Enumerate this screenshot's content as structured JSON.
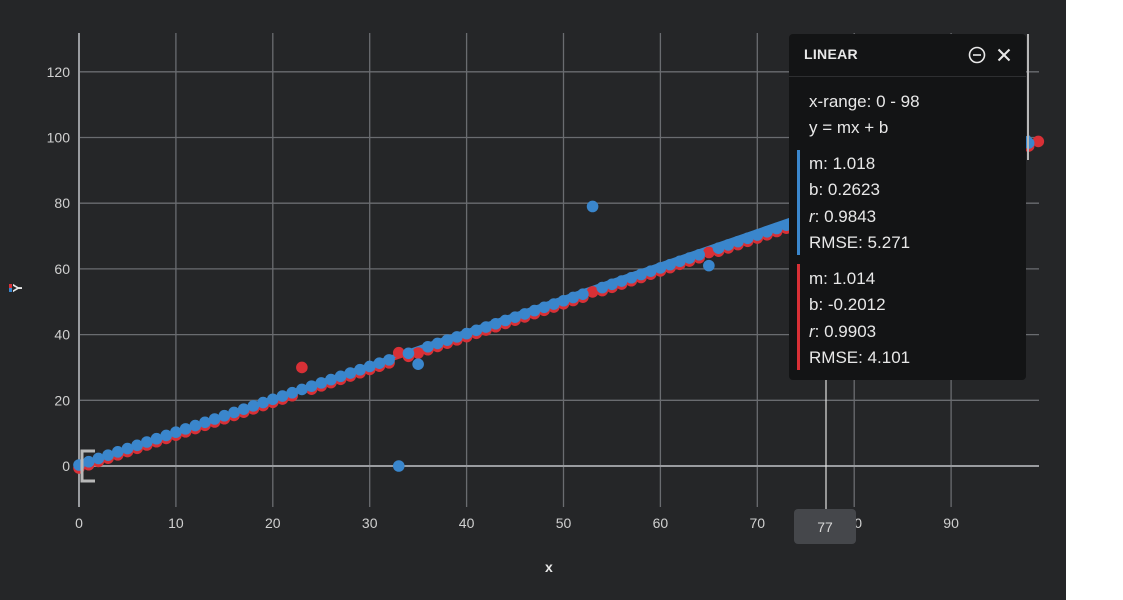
{
  "chart_data": {
    "type": "scatter",
    "xlabel": "x",
    "ylabel": "Y",
    "xlim": [
      0,
      100
    ],
    "ylim": [
      -13,
      132
    ],
    "x_ticks": [
      0,
      10,
      20,
      30,
      40,
      50,
      60,
      70,
      80,
      90
    ],
    "y_ticks": [
      0,
      20,
      40,
      60,
      80,
      100,
      120
    ],
    "grid": true,
    "series": [
      {
        "color": "#d83036",
        "trend": {
          "m": 1.014,
          "b": -0.2012
        },
        "outliers": [
          [
            23,
            30
          ],
          [
            33,
            34.5
          ],
          [
            53,
            53
          ],
          [
            65,
            65
          ],
          [
            99,
            98.8
          ]
        ],
        "points": "x = 0..98, y ≈ x"
      },
      {
        "color": "#3a86cc",
        "trend": {
          "m": 1.018,
          "b": 0.2623
        },
        "outliers": [
          [
            33,
            0
          ],
          [
            35,
            31
          ],
          [
            53,
            79
          ],
          [
            65,
            61
          ]
        ],
        "points": "x = 0..98, y ≈ x"
      }
    ],
    "hover_x": 77
  },
  "panel": {
    "title": "LINEAR",
    "x_range": "x-range: 0 - 98",
    "formula": "y = mx + b",
    "blue": {
      "m": "m: 1.018",
      "b": "b: 0.2623",
      "r_label": "r",
      "r_value": ": 0.9843",
      "rmse": "RMSE: 5.271"
    },
    "red": {
      "m": "m: 1.014",
      "b": "b: -0.2012",
      "r_label": "r",
      "r_value": ": 0.9903",
      "rmse": "RMSE: 4.101"
    }
  },
  "hover_tag": "77",
  "x_axis_label": "x",
  "y_axis_label": "Y"
}
